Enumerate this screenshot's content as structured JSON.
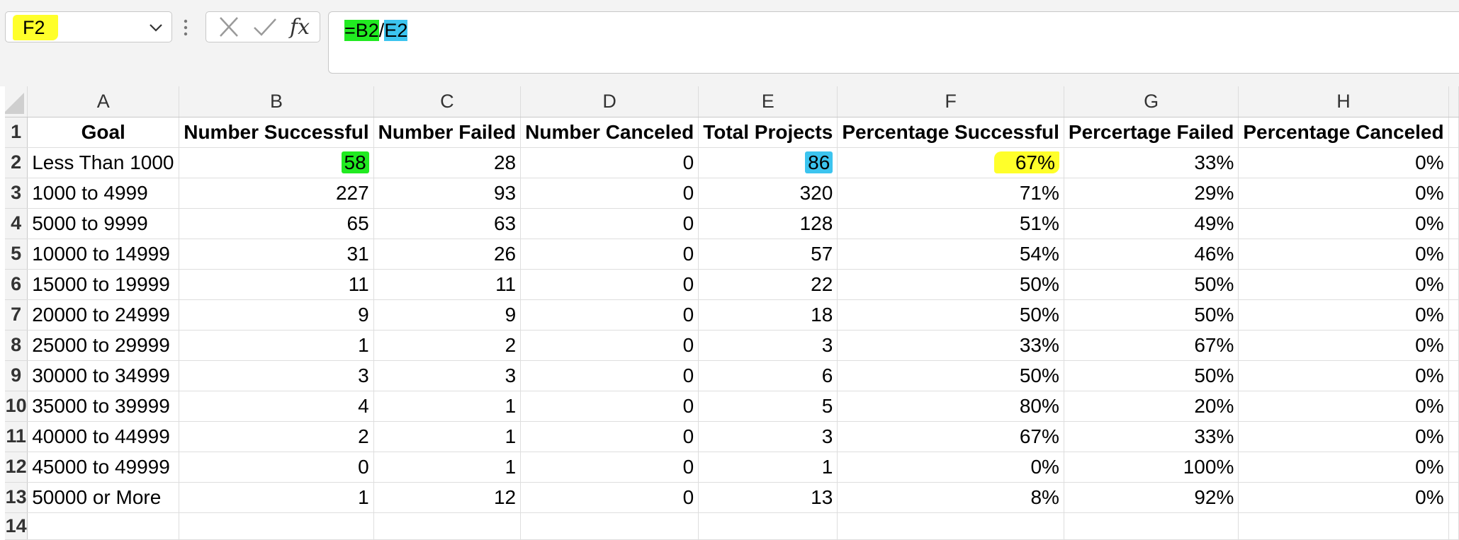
{
  "name_box": {
    "value": "F2"
  },
  "formula_bar": {
    "parts": [
      "=B2",
      "/",
      "E2"
    ]
  },
  "columns": [
    "A",
    "B",
    "C",
    "D",
    "E",
    "F",
    "G",
    "H"
  ],
  "header_row": [
    "Goal",
    "Number Successful",
    "Number Failed",
    "Number Canceled",
    "Total Projects",
    "Percentage Successful",
    "Percertage Failed",
    "Percentage Canceled"
  ],
  "rows": [
    {
      "n": "2",
      "cells": [
        "Less Than 1000",
        "58",
        "28",
        "0",
        "86",
        "67%",
        "33%",
        "0%"
      ]
    },
    {
      "n": "3",
      "cells": [
        "1000 to 4999",
        "227",
        "93",
        "0",
        "320",
        "71%",
        "29%",
        "0%"
      ]
    },
    {
      "n": "4",
      "cells": [
        "5000 to 9999",
        "65",
        "63",
        "0",
        "128",
        "51%",
        "49%",
        "0%"
      ]
    },
    {
      "n": "5",
      "cells": [
        "10000 to 14999",
        "31",
        "26",
        "0",
        "57",
        "54%",
        "46%",
        "0%"
      ]
    },
    {
      "n": "6",
      "cells": [
        "15000 to 19999",
        "11",
        "11",
        "0",
        "22",
        "50%",
        "50%",
        "0%"
      ]
    },
    {
      "n": "7",
      "cells": [
        "20000 to 24999",
        "9",
        "9",
        "0",
        "18",
        "50%",
        "50%",
        "0%"
      ]
    },
    {
      "n": "8",
      "cells": [
        "25000 to 29999",
        "1",
        "2",
        "0",
        "3",
        "33%",
        "67%",
        "0%"
      ]
    },
    {
      "n": "9",
      "cells": [
        "30000 to 34999",
        "3",
        "3",
        "0",
        "6",
        "50%",
        "50%",
        "0%"
      ]
    },
    {
      "n": "10",
      "cells": [
        "35000 to 39999",
        "4",
        "1",
        "0",
        "5",
        "80%",
        "20%",
        "0%"
      ]
    },
    {
      "n": "11",
      "cells": [
        "40000 to 44999",
        "2",
        "1",
        "0",
        "3",
        "67%",
        "33%",
        "0%"
      ]
    },
    {
      "n": "12",
      "cells": [
        "45000 to 49999",
        "0",
        "1",
        "0",
        "1",
        "0%",
        "100%",
        "0%"
      ]
    },
    {
      "n": "13",
      "cells": [
        "50000 or More",
        "1",
        "12",
        "0",
        "13",
        "8%",
        "92%",
        "0%"
      ]
    }
  ],
  "row_numbers": {
    "first": "1",
    "last": "14"
  },
  "highlights": {
    "green": "#21ea21",
    "blue": "#3cc4ef",
    "yellow": "#ffff2a"
  },
  "icons": [
    "chevron-down-icon",
    "vertical-dots-icon",
    "cancel-x-icon",
    "enter-check-icon",
    "fx-icon"
  ]
}
